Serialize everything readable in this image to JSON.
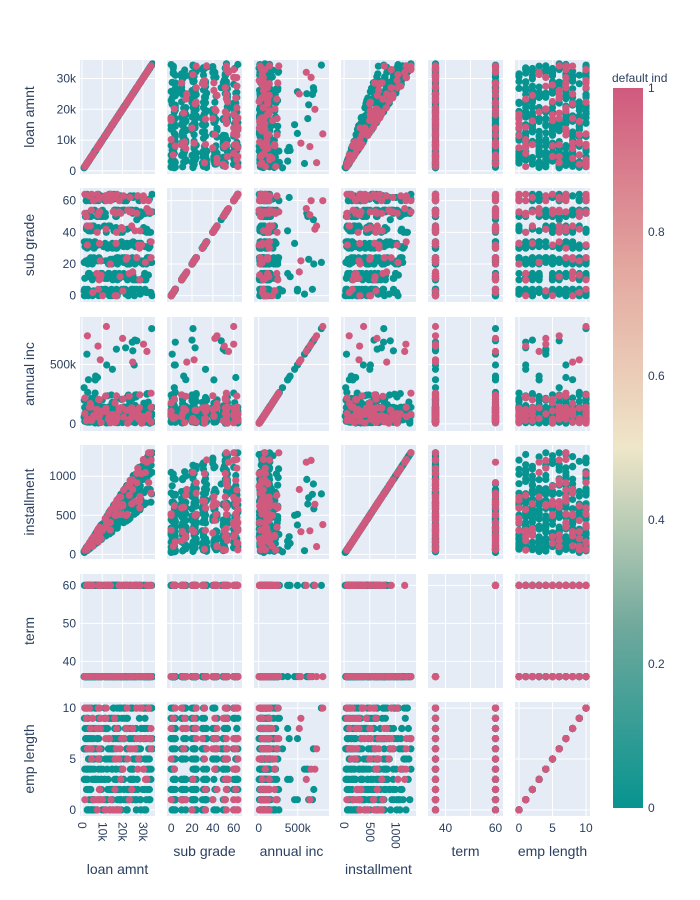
{
  "chart_data": {
    "type": "scatter_matrix",
    "dimensions": [
      "loan amnt",
      "sub grade",
      "annual inc",
      "installment",
      "term",
      "emp length"
    ],
    "axes": {
      "loan amnt": {
        "range": [
          -1000,
          36000
        ],
        "ticks": [
          0,
          10000,
          20000,
          30000
        ],
        "tick_labels": [
          "0",
          "10k",
          "20k",
          "30k"
        ],
        "rotated_x_ticks": true
      },
      "sub grade": {
        "range": [
          -4,
          68
        ],
        "ticks": [
          0,
          20,
          40,
          60
        ],
        "x_ticks": [
          0,
          20,
          40,
          60
        ],
        "tick_labels": [
          "0",
          "20",
          "40",
          "60"
        ]
      },
      "annual inc": {
        "range": [
          -60000,
          900000
        ],
        "ticks": [
          0,
          500000
        ],
        "tick_labels": [
          "0",
          "500k"
        ]
      },
      "installment": {
        "range": [
          -60,
          1400
        ],
        "ticks": [
          0,
          500,
          1000
        ],
        "tick_labels": [
          "0",
          "500",
          "1000"
        ],
        "rotated_x_ticks": true
      },
      "term": {
        "range": [
          33,
          63
        ],
        "ticks": [
          40,
          50,
          60
        ],
        "x_ticks": [
          40,
          50,
          60
        ],
        "x_tick_labels": [
          "40",
          "",
          "60"
        ],
        "tick_labels": [
          "40",
          "50",
          "60"
        ]
      },
      "emp length": {
        "range": [
          -0.6,
          10.6
        ],
        "ticks": [
          0,
          5,
          10
        ],
        "tick_labels": [
          "0",
          "5",
          "10"
        ]
      }
    },
    "y_tick_overrides": {
      "sub grade": {
        "ticks": [
          0,
          20,
          40,
          60
        ],
        "tick_labels": [
          "0",
          "20",
          "40",
          "60"
        ]
      },
      "term": {
        "ticks": [
          40,
          50,
          60
        ],
        "tick_labels": [
          "40",
          "50",
          "60"
        ]
      }
    },
    "color_variable": "default ind",
    "colorscale": [
      "#079490",
      "#6fa89c",
      "#efe6c8",
      "#e3a79f",
      "#d05a7e"
    ],
    "colorbar": {
      "title": "default ind",
      "range": [
        0,
        1
      ],
      "ticks": [
        0,
        0.2,
        0.4,
        0.6,
        0.8,
        1
      ],
      "tick_labels": [
        "0",
        "0.2",
        "0.4",
        "0.6",
        "0.8",
        "1"
      ]
    },
    "marker_colors": {
      "non_default": "#079490",
      "default": "#d05a7e"
    },
    "grid": true,
    "plot_bgcolor": "#e5ecf6"
  }
}
